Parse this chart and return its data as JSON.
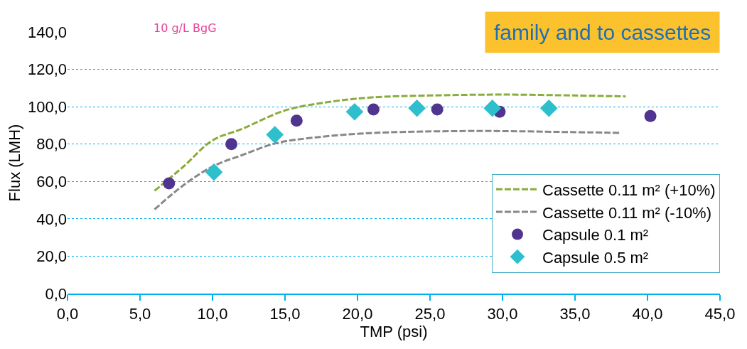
{
  "chart_data": {
    "type": "scatter",
    "xlabel": "TMP (psi)",
    "ylabel": "Flux (LMH)",
    "annotations": [
      "10 g/L BgG",
      "family and to cassettes"
    ],
    "xlim": [
      0,
      45
    ],
    "xticks": [
      {
        "value": 0,
        "label": "0,0"
      },
      {
        "value": 5,
        "label": "5,0"
      },
      {
        "value": 10,
        "label": "10,0"
      },
      {
        "value": 15,
        "label": "15,0"
      },
      {
        "value": 20,
        "label": "20,0"
      },
      {
        "value": 25,
        "label": "25,0"
      },
      {
        "value": 30,
        "label": "30,0"
      },
      {
        "value": 35,
        "label": "35,0"
      },
      {
        "value": 40,
        "label": "40,0"
      },
      {
        "value": 45,
        "label": "45,0"
      }
    ],
    "ylim": [
      0,
      140
    ],
    "yticks": [
      {
        "value": 0,
        "label": "0,0"
      },
      {
        "value": 20,
        "label": "20,0"
      },
      {
        "value": 40,
        "label": "40,0"
      },
      {
        "value": 60,
        "label": "60,0"
      },
      {
        "value": 80,
        "label": "80,0"
      },
      {
        "value": 100,
        "label": "100,0"
      },
      {
        "value": 120,
        "label": "120,0"
      },
      {
        "value": 140,
        "label": "140,0"
      }
    ],
    "grid": "y",
    "legend": "bottom right",
    "series": [
      {
        "name": "Cassette 0.11 m² (+10%)",
        "type": "line",
        "line_style": "dashed",
        "marker": "none",
        "color": "#8aac3a",
        "x": [
          6,
          8,
          10,
          12,
          15,
          18,
          21,
          25,
          30,
          35,
          38.5
        ],
        "values": [
          55,
          68,
          82,
          88,
          98,
          102.5,
          105,
          106,
          106.5,
          106,
          105.5
        ]
      },
      {
        "name": "Cassette 0.11 m² (-10%)",
        "type": "line",
        "line_style": "dashed",
        "marker": "none",
        "color": "#888888",
        "x": [
          6,
          8,
          10,
          12,
          14.4,
          17,
          20,
          23,
          29,
          34,
          38.2
        ],
        "values": [
          45,
          58,
          68,
          74,
          80.5,
          83.5,
          85.5,
          86.5,
          87,
          86.5,
          86
        ]
      },
      {
        "name": "Capsule 0.1 m²",
        "marker": "circle",
        "color": "#4f3590",
        "x": [
          7.0,
          11.3,
          15.8,
          21.1,
          25.5,
          29.8,
          40.2
        ],
        "values": [
          59,
          80,
          92.5,
          98.5,
          98.5,
          97.3,
          95
        ]
      },
      {
        "name": "Capsule 0.5 m²",
        "marker": "diamond",
        "color": "#2ebfcc",
        "x": [
          10.1,
          14.3,
          19.8,
          24.1,
          29.3,
          33.2
        ],
        "values": [
          65,
          85,
          97.3,
          99.2,
          99.2,
          99.2
        ]
      }
    ]
  }
}
